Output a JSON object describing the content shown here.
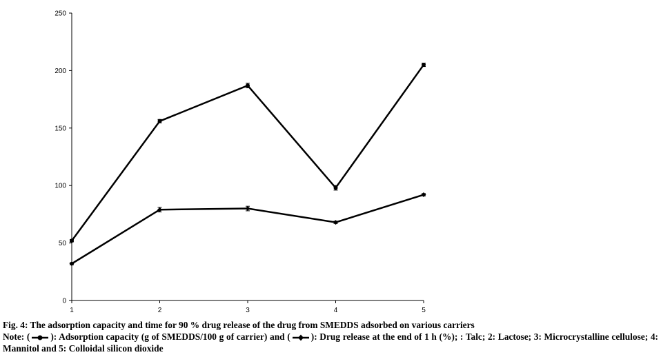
{
  "chart_data": {
    "type": "line",
    "x": [
      1,
      2,
      3,
      4,
      5
    ],
    "xticks": [
      "1",
      "2",
      "3",
      "4",
      "5"
    ],
    "yticks": [
      "0",
      "50",
      "100",
      "150",
      "200",
      "250"
    ],
    "ylim": [
      0,
      250
    ],
    "grid": false,
    "series": [
      {
        "values": [
          52,
          156,
          187,
          98,
          205
        ],
        "errors": [
          1,
          1.5,
          2,
          2,
          1.5
        ],
        "marker": "circle",
        "color": "#000000"
      },
      {
        "values": [
          32,
          79,
          80,
          68,
          92
        ],
        "errors": [
          1,
          2,
          2,
          1,
          1
        ],
        "marker": "diamond",
        "color": "#000000"
      }
    ]
  },
  "caption": {
    "title": "Fig. 4: The adsorption capacity and time for 90 % drug release of the drug from SMEDDS adsorbed on various carriers",
    "note_prefix": "Note: (",
    "note_mid1": "): Adsorption capacity (g of SMEDDS/100 g of carrier) and (",
    "note_mid2": "): Drug release at the end of 1 h (%); : Talc; 2: Lactose; 3: Microcrystalline cellulose; 4: Mannitol and 5: Colloidal silicon dioxide"
  }
}
